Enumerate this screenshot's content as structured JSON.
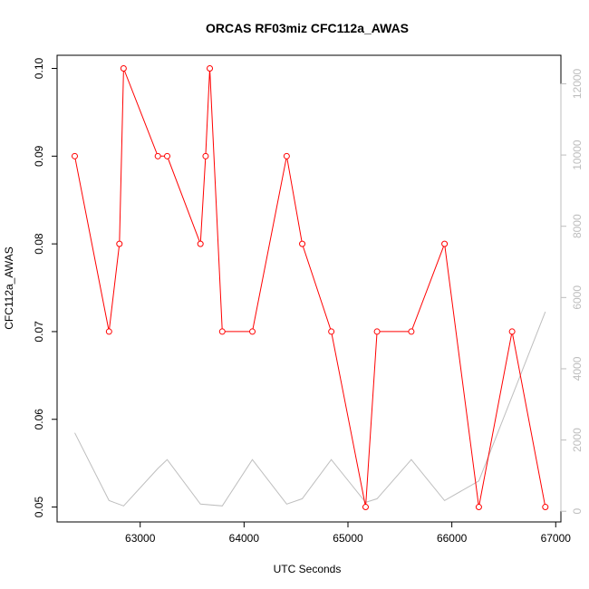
{
  "chart_data": {
    "type": "line",
    "title": "ORCAS RF03miz CFC112a_AWAS",
    "xlabel": "UTC Seconds",
    "ylabel": "CFC112a_AWAS",
    "xlim": [
      62200,
      67050
    ],
    "ylim": [
      0.0483,
      0.1015
    ],
    "y2lim": [
      -300,
      12800
    ],
    "x_ticks": [
      63000,
      64000,
      65000,
      66000,
      67000
    ],
    "x_tick_labels": [
      "63000",
      "64000",
      "65000",
      "66000",
      "67000"
    ],
    "y_ticks": [
      0.05,
      0.06,
      0.07,
      0.08,
      0.09,
      0.1
    ],
    "y_tick_labels": [
      "0.05",
      "0.06",
      "0.07",
      "0.08",
      "0.09",
      "0.10"
    ],
    "y2_ticks": [
      0,
      2000,
      4000,
      6000,
      8000,
      10000,
      12000
    ],
    "y2_tick_labels": [
      "0",
      "2000",
      "4000",
      "6000",
      "8000",
      "10000",
      "12000"
    ],
    "grid": false,
    "series": [
      {
        "color": "#ff0000",
        "axis": "left",
        "marker": "circle",
        "x": [
          62370,
          62700,
          62800,
          62840,
          63170,
          63260,
          63580,
          63630,
          63670,
          63790,
          64080,
          64410,
          64560,
          64840,
          65170,
          65280,
          65610,
          65930,
          66260,
          66580,
          66900
        ],
        "y": [
          0.09,
          0.07,
          0.08,
          0.1,
          0.09,
          0.09,
          0.08,
          0.09,
          0.1,
          0.07,
          0.07,
          0.09,
          0.08,
          0.07,
          0.05,
          0.07,
          0.07,
          0.08,
          0.05,
          0.07,
          0.05
        ]
      },
      {
        "color": "#bebebe",
        "axis": "right",
        "marker": "none",
        "x": [
          62370,
          62700,
          62840,
          63170,
          63260,
          63580,
          63790,
          64080,
          64410,
          64560,
          64840,
          65170,
          65280,
          65610,
          65930,
          66260,
          66900
        ],
        "y": [
          2200,
          300,
          150,
          1200,
          1450,
          200,
          150,
          1450,
          200,
          350,
          1450,
          250,
          350,
          1450,
          300,
          850,
          5600
        ]
      }
    ]
  }
}
